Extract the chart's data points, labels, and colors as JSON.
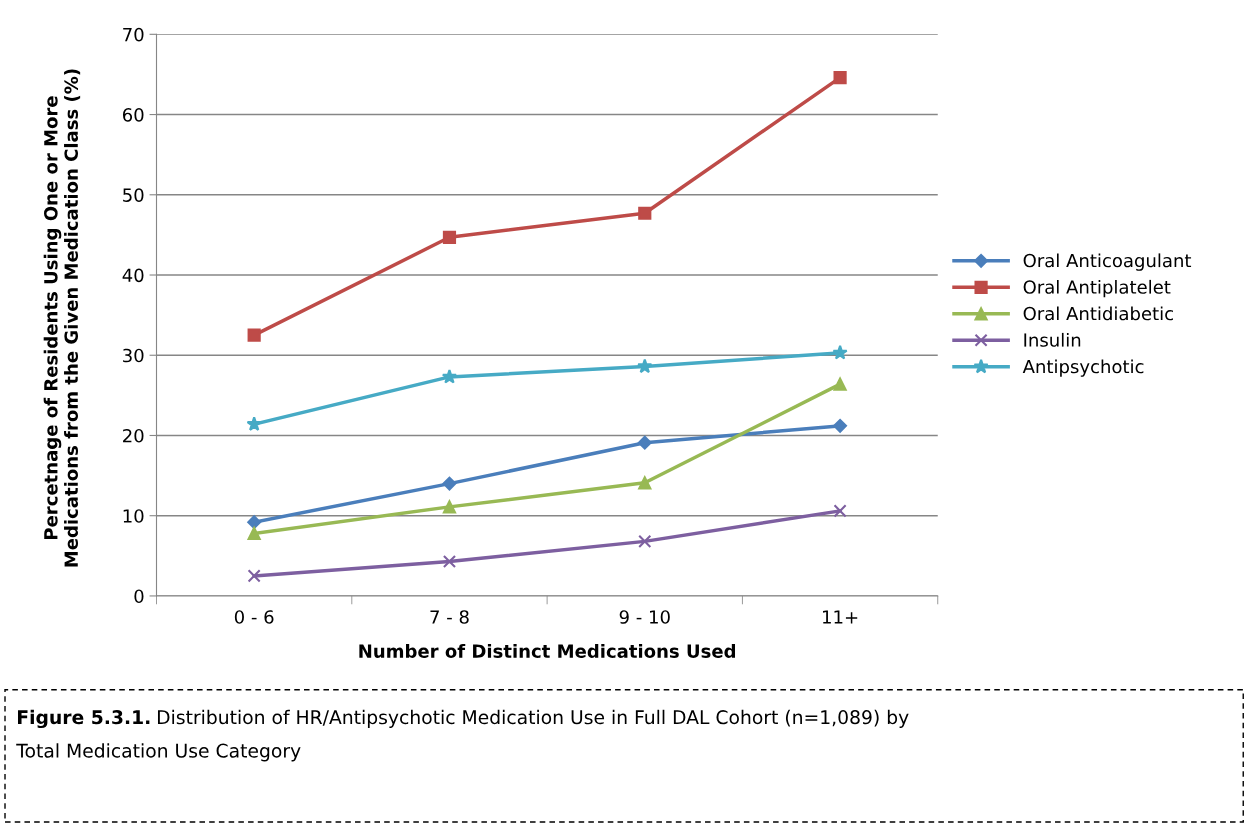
{
  "chart_data": {
    "type": "line",
    "xlabel": "Number of Distinct Medications Used",
    "ylabel": "Percetnage of Residents Using One or More Medications from the Given Medication Class (%)",
    "categories": [
      "0 - 6",
      "7 - 8",
      "9 - 10",
      "11+"
    ],
    "ylim": [
      0,
      70
    ],
    "yticks": [
      0,
      10,
      20,
      30,
      40,
      50,
      60,
      70
    ],
    "grid": "y",
    "legend": "right",
    "series": [
      {
        "name": "Oral Anticoagulant",
        "color": "#4a7ebb",
        "marker": "diamond",
        "values": [
          9.2,
          14.0,
          19.1,
          21.2
        ]
      },
      {
        "name": "Oral Antiplatelet",
        "color": "#be4b48",
        "marker": "square",
        "values": [
          32.5,
          44.7,
          47.7,
          64.6
        ]
      },
      {
        "name": "Oral Antidiabetic",
        "color": "#98b954",
        "marker": "triangle",
        "values": [
          7.8,
          11.1,
          14.1,
          26.4
        ]
      },
      {
        "name": "Insulin",
        "color": "#7d5fa0",
        "marker": "cross",
        "values": [
          2.5,
          4.3,
          6.8,
          10.6
        ]
      },
      {
        "name": "Antipsychotic",
        "color": "#46aac5",
        "marker": "star",
        "values": [
          21.4,
          27.3,
          28.6,
          30.3
        ]
      }
    ],
    "annotations": [
      "Figure 5.3.1.",
      "Distribution of HR/Antipsychotic Medication Use in Full DAL Cohort (n=1,089) by Total Medication Use Category"
    ]
  }
}
